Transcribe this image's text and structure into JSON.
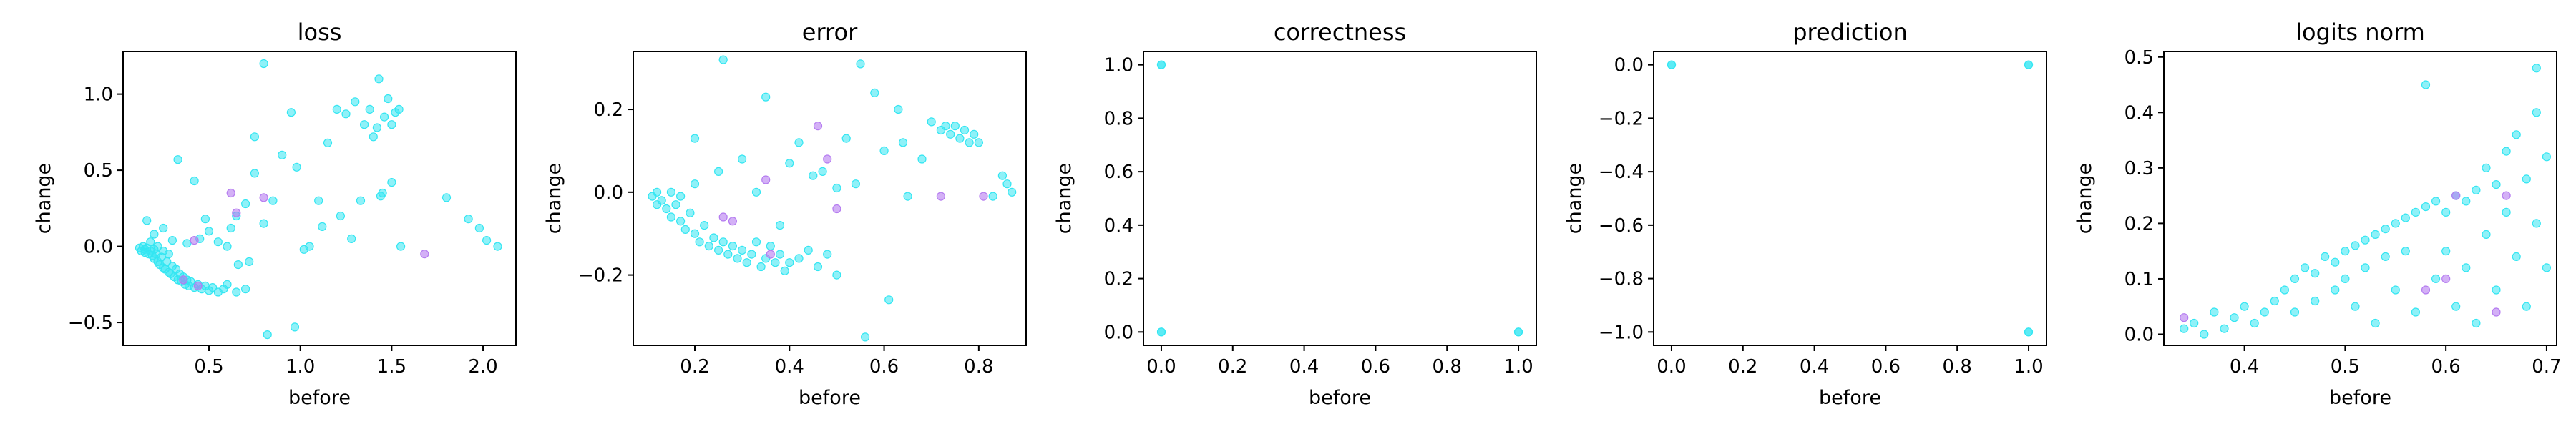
{
  "chart_data": [
    {
      "type": "scatter",
      "title": "loss",
      "xlabel": "before",
      "ylabel": "change",
      "xlim": [
        0.03,
        2.18
      ],
      "ylim": [
        -0.65,
        1.28
      ],
      "xticks": [
        0.5,
        1.0,
        1.5,
        2.0
      ],
      "xtick_labels": [
        "0.5",
        "1.0",
        "1.5",
        "2.0"
      ],
      "yticks": [
        -0.5,
        0.0,
        0.5,
        1.0
      ],
      "yticks_labels": [
        "−0.5",
        "0.0",
        "0.5",
        "1.0"
      ],
      "grid": false,
      "legend": "none",
      "colors": {
        "main": "#33e6f2",
        "accent": "#b57cf0"
      },
      "points": [
        [
          0.12,
          -0.01
        ],
        [
          0.13,
          -0.03
        ],
        [
          0.14,
          0.0
        ],
        [
          0.15,
          -0.02
        ],
        [
          0.15,
          -0.04
        ],
        [
          0.16,
          -0.01
        ],
        [
          0.17,
          -0.05
        ],
        [
          0.18,
          -0.03
        ],
        [
          0.18,
          0.03
        ],
        [
          0.19,
          -0.06
        ],
        [
          0.2,
          -0.02
        ],
        [
          0.2,
          -0.08
        ],
        [
          0.21,
          -0.05
        ],
        [
          0.22,
          -0.1
        ],
        [
          0.22,
          0.0
        ],
        [
          0.23,
          -0.12
        ],
        [
          0.24,
          -0.07
        ],
        [
          0.25,
          -0.14
        ],
        [
          0.25,
          -0.03
        ],
        [
          0.26,
          -0.15
        ],
        [
          0.27,
          -0.1
        ],
        [
          0.28,
          -0.17
        ],
        [
          0.28,
          -0.05
        ],
        [
          0.29,
          -0.18
        ],
        [
          0.3,
          -0.13
        ],
        [
          0.31,
          -0.2
        ],
        [
          0.32,
          -0.15
        ],
        [
          0.33,
          -0.22
        ],
        [
          0.34,
          -0.18
        ],
        [
          0.35,
          -0.23
        ],
        [
          0.36,
          -0.2
        ],
        [
          0.37,
          -0.25
        ],
        [
          0.38,
          -0.22
        ],
        [
          0.39,
          -0.26
        ],
        [
          0.4,
          -0.23
        ],
        [
          0.42,
          -0.27
        ],
        [
          0.44,
          -0.25
        ],
        [
          0.46,
          -0.28
        ],
        [
          0.48,
          -0.26
        ],
        [
          0.5,
          -0.29
        ],
        [
          0.52,
          -0.27
        ],
        [
          0.55,
          -0.3
        ],
        [
          0.58,
          -0.28
        ],
        [
          0.6,
          -0.25
        ],
        [
          0.65,
          -0.3
        ],
        [
          0.7,
          -0.28
        ],
        [
          0.16,
          0.17
        ],
        [
          0.2,
          0.08
        ],
        [
          0.25,
          0.12
        ],
        [
          0.3,
          0.04
        ],
        [
          0.33,
          0.57
        ],
        [
          0.38,
          0.02
        ],
        [
          0.42,
          0.43
        ],
        [
          0.45,
          0.05
        ],
        [
          0.48,
          0.18
        ],
        [
          0.5,
          0.1
        ],
        [
          0.55,
          0.03
        ],
        [
          0.6,
          0.0
        ],
        [
          0.62,
          0.12
        ],
        [
          0.65,
          0.2
        ],
        [
          0.66,
          -0.12
        ],
        [
          0.7,
          0.28
        ],
        [
          0.72,
          -0.1
        ],
        [
          0.75,
          0.48
        ],
        [
          0.75,
          0.72
        ],
        [
          0.8,
          1.2
        ],
        [
          0.8,
          0.15
        ],
        [
          0.82,
          -0.58
        ],
        [
          0.85,
          0.3
        ],
        [
          0.9,
          0.6
        ],
        [
          0.95,
          0.88
        ],
        [
          0.98,
          0.52
        ],
        [
          0.97,
          -0.53
        ],
        [
          1.02,
          -0.02
        ],
        [
          1.05,
          0.0
        ],
        [
          1.1,
          0.3
        ],
        [
          1.12,
          0.13
        ],
        [
          1.15,
          0.68
        ],
        [
          1.2,
          0.9
        ],
        [
          1.22,
          0.2
        ],
        [
          1.25,
          0.87
        ],
        [
          1.28,
          0.05
        ],
        [
          1.3,
          0.95
        ],
        [
          1.33,
          0.3
        ],
        [
          1.35,
          0.8
        ],
        [
          1.38,
          0.9
        ],
        [
          1.4,
          0.72
        ],
        [
          1.42,
          0.78
        ],
        [
          1.43,
          1.1
        ],
        [
          1.45,
          0.35
        ],
        [
          1.46,
          0.85
        ],
        [
          1.48,
          0.97
        ],
        [
          1.5,
          0.8
        ],
        [
          1.52,
          0.88
        ],
        [
          1.54,
          0.9
        ],
        [
          1.55,
          0.0
        ],
        [
          1.5,
          0.42
        ],
        [
          1.44,
          0.33
        ],
        [
          1.8,
          0.32
        ],
        [
          1.92,
          0.18
        ],
        [
          1.98,
          0.12
        ],
        [
          2.02,
          0.04
        ],
        [
          2.08,
          0.0
        ]
      ],
      "accent_points": [
        [
          0.36,
          -0.22
        ],
        [
          0.42,
          0.04
        ],
        [
          0.44,
          -0.26
        ],
        [
          0.62,
          0.35
        ],
        [
          0.65,
          0.22
        ],
        [
          0.8,
          0.32
        ],
        [
          1.68,
          -0.05
        ]
      ]
    },
    {
      "type": "scatter",
      "title": "error",
      "xlabel": "before",
      "ylabel": "change",
      "xlim": [
        0.07,
        0.9
      ],
      "ylim": [
        -0.37,
        0.34
      ],
      "xticks": [
        0.2,
        0.4,
        0.6,
        0.8
      ],
      "xtick_labels": [
        "0.2",
        "0.4",
        "0.6",
        "0.8"
      ],
      "yticks": [
        -0.2,
        0.0,
        0.2
      ],
      "yticks_labels": [
        "−0.2",
        "0.0",
        "0.2"
      ],
      "grid": false,
      "legend": "none",
      "colors": {
        "main": "#33e6f2",
        "accent": "#b57cf0"
      },
      "points": [
        [
          0.11,
          -0.01
        ],
        [
          0.12,
          0.0
        ],
        [
          0.12,
          -0.03
        ],
        [
          0.13,
          -0.02
        ],
        [
          0.14,
          -0.04
        ],
        [
          0.15,
          0.0
        ],
        [
          0.15,
          -0.06
        ],
        [
          0.16,
          -0.03
        ],
        [
          0.17,
          -0.07
        ],
        [
          0.17,
          -0.01
        ],
        [
          0.18,
          -0.09
        ],
        [
          0.19,
          -0.05
        ],
        [
          0.2,
          -0.1
        ],
        [
          0.2,
          0.02
        ],
        [
          0.21,
          -0.12
        ],
        [
          0.22,
          -0.08
        ],
        [
          0.23,
          -0.13
        ],
        [
          0.24,
          -0.11
        ],
        [
          0.25,
          -0.14
        ],
        [
          0.26,
          -0.12
        ],
        [
          0.27,
          -0.15
        ],
        [
          0.28,
          -0.13
        ],
        [
          0.29,
          -0.16
        ],
        [
          0.3,
          -0.14
        ],
        [
          0.31,
          -0.17
        ],
        [
          0.32,
          -0.15
        ],
        [
          0.33,
          -0.12
        ],
        [
          0.34,
          -0.18
        ],
        [
          0.35,
          -0.16
        ],
        [
          0.36,
          -0.13
        ],
        [
          0.37,
          -0.17
        ],
        [
          0.38,
          -0.15
        ],
        [
          0.39,
          -0.19
        ],
        [
          0.4,
          -0.17
        ],
        [
          0.42,
          -0.16
        ],
        [
          0.44,
          -0.14
        ],
        [
          0.46,
          -0.18
        ],
        [
          0.48,
          -0.15
        ],
        [
          0.5,
          -0.2
        ],
        [
          0.2,
          0.13
        ],
        [
          0.25,
          0.05
        ],
        [
          0.26,
          0.32
        ],
        [
          0.3,
          0.08
        ],
        [
          0.33,
          0.0
        ],
        [
          0.35,
          0.23
        ],
        [
          0.38,
          -0.08
        ],
        [
          0.4,
          0.07
        ],
        [
          0.42,
          0.12
        ],
        [
          0.45,
          0.04
        ],
        [
          0.47,
          0.05
        ],
        [
          0.5,
          0.01
        ],
        [
          0.52,
          0.13
        ],
        [
          0.54,
          0.02
        ],
        [
          0.55,
          0.31
        ],
        [
          0.56,
          -0.35
        ],
        [
          0.58,
          0.24
        ],
        [
          0.6,
          0.1
        ],
        [
          0.61,
          -0.26
        ],
        [
          0.63,
          0.2
        ],
        [
          0.64,
          0.12
        ],
        [
          0.65,
          -0.01
        ],
        [
          0.68,
          0.08
        ],
        [
          0.7,
          0.17
        ],
        [
          0.72,
          0.15
        ],
        [
          0.73,
          0.16
        ],
        [
          0.74,
          0.14
        ],
        [
          0.75,
          0.16
        ],
        [
          0.76,
          0.13
        ],
        [
          0.77,
          0.15
        ],
        [
          0.78,
          0.12
        ],
        [
          0.79,
          0.14
        ],
        [
          0.8,
          0.12
        ],
        [
          0.83,
          -0.01
        ],
        [
          0.85,
          0.04
        ],
        [
          0.86,
          0.02
        ],
        [
          0.87,
          0.0
        ]
      ],
      "accent_points": [
        [
          0.26,
          -0.06
        ],
        [
          0.28,
          -0.07
        ],
        [
          0.35,
          0.03
        ],
        [
          0.36,
          -0.15
        ],
        [
          0.46,
          0.16
        ],
        [
          0.48,
          0.08
        ],
        [
          0.5,
          -0.04
        ],
        [
          0.72,
          -0.01
        ],
        [
          0.81,
          -0.01
        ]
      ]
    },
    {
      "type": "scatter",
      "title": "correctness",
      "xlabel": "before",
      "ylabel": "change",
      "xlim": [
        -0.05,
        1.05
      ],
      "ylim": [
        -0.05,
        1.05
      ],
      "xticks": [
        0.0,
        0.2,
        0.4,
        0.6,
        0.8,
        1.0
      ],
      "xtick_labels": [
        "0.0",
        "0.2",
        "0.4",
        "0.6",
        "0.8",
        "1.0"
      ],
      "yticks": [
        0.0,
        0.2,
        0.4,
        0.6,
        0.8,
        1.0
      ],
      "yticks_labels": [
        "0.0",
        "0.2",
        "0.4",
        "0.6",
        "0.8",
        "1.0"
      ],
      "grid": false,
      "legend": "none",
      "colors": {
        "main": "#33e6f2",
        "accent": "#b57cf0"
      },
      "points": [
        [
          0,
          1
        ],
        [
          0,
          1
        ],
        [
          0,
          0
        ],
        [
          0,
          0
        ],
        [
          1,
          0
        ],
        [
          1,
          0
        ]
      ],
      "accent_points": []
    },
    {
      "type": "scatter",
      "title": "prediction",
      "xlabel": "before",
      "ylabel": "change",
      "xlim": [
        -0.05,
        1.05
      ],
      "ylim": [
        -1.05,
        0.05
      ],
      "xticks": [
        0.0,
        0.2,
        0.4,
        0.6,
        0.8,
        1.0
      ],
      "xtick_labels": [
        "0.0",
        "0.2",
        "0.4",
        "0.6",
        "0.8",
        "1.0"
      ],
      "yticks": [
        -1.0,
        -0.8,
        -0.6,
        -0.4,
        -0.2,
        0.0
      ],
      "yticks_labels": [
        "−1.0",
        "−0.8",
        "−0.6",
        "−0.4",
        "−0.2",
        "0.0"
      ],
      "grid": false,
      "legend": "none",
      "colors": {
        "main": "#33e6f2",
        "accent": "#b57cf0"
      },
      "points": [
        [
          0,
          0
        ],
        [
          0,
          0
        ],
        [
          1,
          0
        ],
        [
          1,
          0
        ],
        [
          1,
          -1
        ],
        [
          1,
          -1
        ]
      ],
      "accent_points": []
    },
    {
      "type": "scatter",
      "title": "logits norm",
      "xlabel": "before",
      "ylabel": "change",
      "xlim": [
        0.32,
        0.71
      ],
      "ylim": [
        -0.02,
        0.51
      ],
      "xticks": [
        0.4,
        0.5,
        0.6,
        0.7
      ],
      "xtick_labels": [
        "0.4",
        "0.5",
        "0.6",
        "0.7"
      ],
      "yticks": [
        0.0,
        0.1,
        0.2,
        0.3,
        0.4,
        0.5
      ],
      "yticks_labels": [
        "0.0",
        "0.1",
        "0.2",
        "0.3",
        "0.4",
        "0.5"
      ],
      "grid": false,
      "legend": "none",
      "colors": {
        "main": "#33e6f2",
        "accent": "#b57cf0"
      },
      "points": [
        [
          0.34,
          0.01
        ],
        [
          0.35,
          0.02
        ],
        [
          0.36,
          0.0
        ],
        [
          0.37,
          0.04
        ],
        [
          0.38,
          0.01
        ],
        [
          0.39,
          0.03
        ],
        [
          0.4,
          0.05
        ],
        [
          0.41,
          0.02
        ],
        [
          0.42,
          0.04
        ],
        [
          0.43,
          0.06
        ],
        [
          0.44,
          0.08
        ],
        [
          0.45,
          0.1
        ],
        [
          0.45,
          0.04
        ],
        [
          0.46,
          0.12
        ],
        [
          0.47,
          0.11
        ],
        [
          0.47,
          0.06
        ],
        [
          0.48,
          0.14
        ],
        [
          0.49,
          0.13
        ],
        [
          0.49,
          0.08
        ],
        [
          0.5,
          0.15
        ],
        [
          0.5,
          0.1
        ],
        [
          0.51,
          0.16
        ],
        [
          0.51,
          0.05
        ],
        [
          0.52,
          0.17
        ],
        [
          0.52,
          0.12
        ],
        [
          0.53,
          0.18
        ],
        [
          0.53,
          0.02
        ],
        [
          0.54,
          0.19
        ],
        [
          0.54,
          0.14
        ],
        [
          0.55,
          0.2
        ],
        [
          0.55,
          0.08
        ],
        [
          0.56,
          0.21
        ],
        [
          0.56,
          0.15
        ],
        [
          0.57,
          0.22
        ],
        [
          0.57,
          0.04
        ],
        [
          0.58,
          0.23
        ],
        [
          0.58,
          0.45
        ],
        [
          0.59,
          0.24
        ],
        [
          0.59,
          0.1
        ],
        [
          0.6,
          0.22
        ],
        [
          0.6,
          0.15
        ],
        [
          0.61,
          0.25
        ],
        [
          0.61,
          0.05
        ],
        [
          0.62,
          0.24
        ],
        [
          0.62,
          0.12
        ],
        [
          0.63,
          0.26
        ],
        [
          0.63,
          0.02
        ],
        [
          0.64,
          0.3
        ],
        [
          0.64,
          0.18
        ],
        [
          0.65,
          0.27
        ],
        [
          0.65,
          0.08
        ],
        [
          0.66,
          0.33
        ],
        [
          0.66,
          0.22
        ],
        [
          0.67,
          0.36
        ],
        [
          0.67,
          0.14
        ],
        [
          0.68,
          0.28
        ],
        [
          0.68,
          0.05
        ],
        [
          0.69,
          0.4
        ],
        [
          0.69,
          0.48
        ],
        [
          0.69,
          0.2
        ],
        [
          0.7,
          0.32
        ],
        [
          0.7,
          0.12
        ]
      ],
      "accent_points": [
        [
          0.34,
          0.03
        ],
        [
          0.58,
          0.08
        ],
        [
          0.6,
          0.1
        ],
        [
          0.61,
          0.25
        ],
        [
          0.65,
          0.04
        ],
        [
          0.66,
          0.25
        ]
      ]
    }
  ]
}
